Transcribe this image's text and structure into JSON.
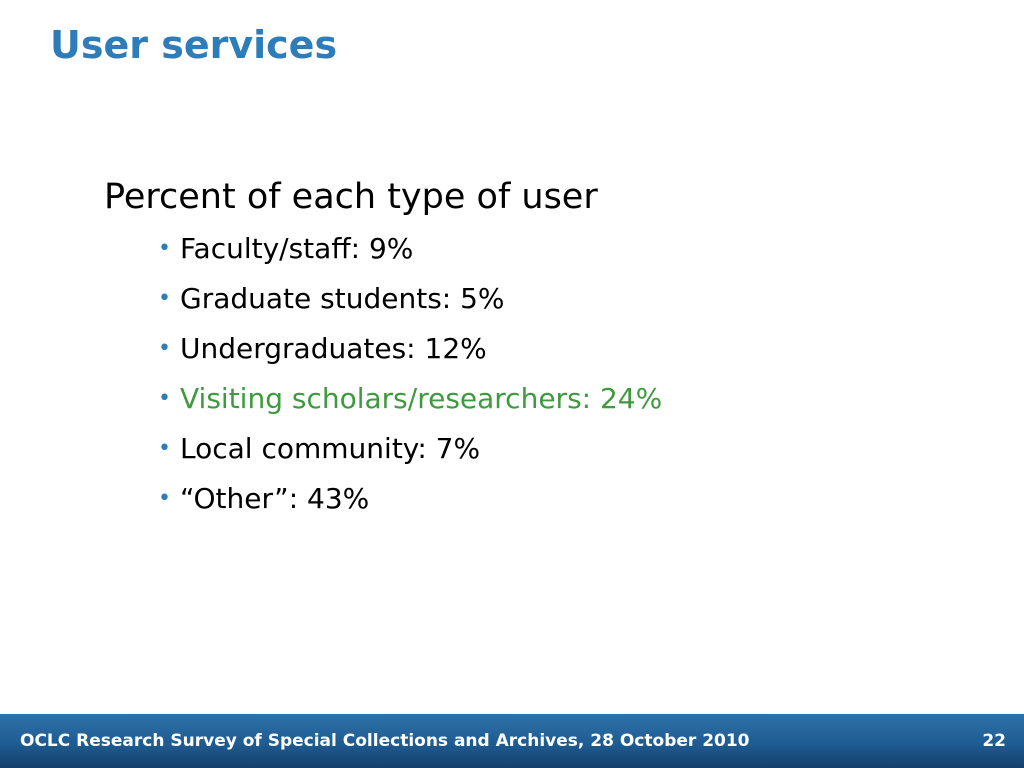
{
  "slide": {
    "title": "User services",
    "heading": "Percent of each type of user",
    "bullets": [
      {
        "text": "Faculty/staff: 9%",
        "highlight": false
      },
      {
        "text": "Graduate students: 5%",
        "highlight": false
      },
      {
        "text": "Undergraduates: 12%",
        "highlight": false
      },
      {
        "text": "Visiting scholars/researchers: 24%",
        "highlight": true
      },
      {
        "text": "Local community: 7%",
        "highlight": false
      },
      {
        "text": "“Other”: 43%",
        "highlight": false
      }
    ],
    "bullet_glyph": "•"
  },
  "footer": {
    "text": "OCLC Research Survey of Special Collections and Archives, 28 October 2010",
    "page_number": "22"
  },
  "colors": {
    "title": "#2e7db9",
    "bullet": "#2e7db9",
    "highlight": "#3f9a3f",
    "footer_bg": "#1e5c92",
    "footer_text": "#ffffff"
  }
}
